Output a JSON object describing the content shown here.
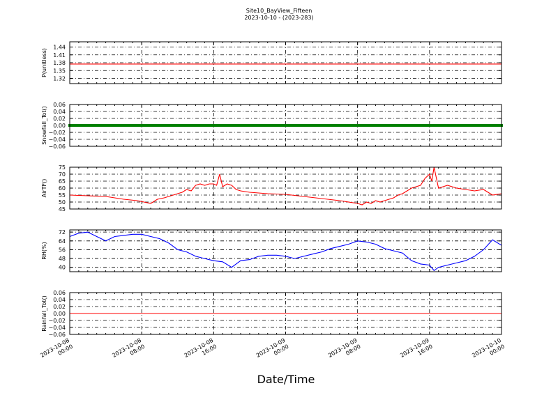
{
  "figure": {
    "title_line1": "Site10_BayView_Fifteen",
    "title_line2": "2023-10-10 - (2023-283)",
    "xlabel": "Date/Time"
  },
  "x_axis": {
    "start": "2023-10-08 00:00",
    "end": "2023-10-10 00:00",
    "tick_labels": [
      [
        "2023-10-08",
        "00:00"
      ],
      [
        "2023-10-08",
        "08:00"
      ],
      [
        "2023-10-08",
        "16:00"
      ],
      [
        "2023-10-09",
        "00:00"
      ],
      [
        "2023-10-09",
        "08:00"
      ],
      [
        "2023-10-09",
        "16:00"
      ],
      [
        "2023-10-10",
        "00:00"
      ]
    ]
  },
  "chart_data": [
    {
      "type": "line",
      "ylabel": "P(unitless)",
      "ylim": [
        1.3,
        1.46
      ],
      "yticks": [
        "1.32",
        "1.35",
        "1.38",
        "1.41",
        "1.44"
      ],
      "grid": true,
      "color": "#ff0000",
      "series": [
        {
          "x": [
            "2023-10-08 00:00",
            "2023-10-10 00:00"
          ],
          "y": [
            1.375,
            1.375
          ]
        }
      ]
    },
    {
      "type": "line",
      "ylabel": "Snowfall_Tot()",
      "ylim": [
        -0.06,
        0.06
      ],
      "yticks": [
        "0.06",
        "0.04",
        "0.02",
        "0.00",
        "−0.02",
        "−0.04",
        "−0.06"
      ],
      "grid": true,
      "color": "#008000",
      "markers": true,
      "series": [
        {
          "x": [
            "2023-10-08 00:00",
            "2023-10-10 00:00"
          ],
          "y": [
            0,
            0
          ]
        }
      ]
    },
    {
      "type": "line",
      "ylabel": "AirTF()",
      "ylim": [
        45,
        75
      ],
      "yticks": [
        "75",
        "70",
        "65",
        "60",
        "55",
        "50",
        "45"
      ],
      "grid": true,
      "color": "#ff0000",
      "series": [
        {
          "x": [
            "2023-10-08 00:00",
            "2023-10-08 02:00",
            "2023-10-08 04:00",
            "2023-10-08 06:00",
            "2023-10-08 07:30",
            "2023-10-08 08:15",
            "2023-10-08 09:00",
            "2023-10-08 09:45",
            "2023-10-08 10:30",
            "2023-10-08 11:30",
            "2023-10-08 12:30",
            "2023-10-08 13:00",
            "2023-10-08 13:30",
            "2023-10-08 14:00",
            "2023-10-08 14:30",
            "2023-10-08 15:00",
            "2023-10-08 15:30",
            "2023-10-08 16:00",
            "2023-10-08 16:20",
            "2023-10-08 16:40",
            "2023-10-08 17:00",
            "2023-10-08 17:30",
            "2023-10-08 18:00",
            "2023-10-08 18:30",
            "2023-10-08 19:00",
            "2023-10-08 20:00",
            "2023-10-08 22:00",
            "2023-10-09 00:00",
            "2023-10-09 02:00",
            "2023-10-09 04:00",
            "2023-10-09 06:00",
            "2023-10-09 08:00",
            "2023-10-09 08:30",
            "2023-10-09 09:00",
            "2023-10-09 09:30",
            "2023-10-09 10:00",
            "2023-10-09 10:30",
            "2023-10-09 11:00",
            "2023-10-09 11:30",
            "2023-10-09 12:00",
            "2023-10-09 12:30",
            "2023-10-09 13:00",
            "2023-10-09 13:30",
            "2023-10-09 14:00",
            "2023-10-09 14:30",
            "2023-10-09 15:00",
            "2023-10-09 15:30",
            "2023-10-09 16:00",
            "2023-10-09 16:15",
            "2023-10-09 16:30",
            "2023-10-09 17:00",
            "2023-10-09 17:30",
            "2023-10-09 18:00",
            "2023-10-09 19:00",
            "2023-10-09 20:00",
            "2023-10-09 21:00",
            "2023-10-09 22:00",
            "2023-10-09 23:00",
            "2023-10-10 00:00"
          ],
          "y": [
            55,
            54.5,
            54,
            52,
            51,
            50,
            49,
            52,
            53,
            55,
            57,
            59,
            58,
            62,
            63,
            62,
            63,
            63,
            62,
            70,
            61,
            63,
            62,
            59,
            58,
            57,
            56,
            55.5,
            54,
            52.5,
            51,
            49,
            48,
            50,
            49,
            51,
            50,
            51,
            52,
            53,
            55,
            56,
            58,
            60,
            61,
            62,
            67,
            70,
            65,
            75,
            60,
            61,
            62,
            60,
            59,
            58,
            59,
            55,
            56
          ]
        }
      ]
    },
    {
      "type": "line",
      "ylabel": "RH(%)",
      "ylim": [
        36,
        74
      ],
      "yticks": [
        "72",
        "64",
        "56",
        "48",
        "40"
      ],
      "grid": true,
      "color": "#0000ff",
      "series": [
        {
          "x": [
            "2023-10-08 00:00",
            "2023-10-08 01:00",
            "2023-10-08 02:00",
            "2023-10-08 03:00",
            "2023-10-08 04:00",
            "2023-10-08 05:00",
            "2023-10-08 06:00",
            "2023-10-08 07:00",
            "2023-10-08 08:00",
            "2023-10-08 09:00",
            "2023-10-08 10:00",
            "2023-10-08 11:00",
            "2023-10-08 12:00",
            "2023-10-08 13:00",
            "2023-10-08 14:00",
            "2023-10-08 15:00",
            "2023-10-08 16:00",
            "2023-10-08 17:00",
            "2023-10-08 18:00",
            "2023-10-08 19:00",
            "2023-10-08 20:00",
            "2023-10-08 21:00",
            "2023-10-08 22:00",
            "2023-10-08 23:00",
            "2023-10-09 00:00",
            "2023-10-09 01:00",
            "2023-10-09 02:00",
            "2023-10-09 03:00",
            "2023-10-09 04:00",
            "2023-10-09 05:00",
            "2023-10-09 06:00",
            "2023-10-09 07:00",
            "2023-10-09 08:00",
            "2023-10-09 09:00",
            "2023-10-09 10:00",
            "2023-10-09 11:00",
            "2023-10-09 12:00",
            "2023-10-09 13:00",
            "2023-10-09 14:00",
            "2023-10-09 15:00",
            "2023-10-09 16:00",
            "2023-10-09 16:30",
            "2023-10-09 17:00",
            "2023-10-09 18:00",
            "2023-10-09 19:00",
            "2023-10-09 20:00",
            "2023-10-09 21:00",
            "2023-10-09 22:00",
            "2023-10-09 23:00",
            "2023-10-10 00:00"
          ],
          "y": [
            68,
            71,
            72,
            68,
            64,
            68,
            69,
            70,
            70,
            68,
            66,
            62,
            56,
            54,
            50,
            48,
            46,
            45,
            40,
            46,
            47,
            50,
            51,
            51,
            50,
            48,
            50,
            52,
            54,
            57,
            59,
            61,
            64,
            63,
            61,
            57,
            55,
            53,
            46,
            43,
            42,
            37,
            40,
            42,
            44,
            46,
            50,
            56,
            65,
            60
          ]
        }
      ]
    },
    {
      "type": "line",
      "ylabel": "Rainfall_Tot()",
      "ylim": [
        -0.06,
        0.06
      ],
      "yticks": [
        "0.06",
        "0.04",
        "0.02",
        "0.00",
        "−0.02",
        "−0.04",
        "−0.06"
      ],
      "grid": true,
      "color": "#ff0000",
      "series": [
        {
          "x": [
            "2023-10-08 00:00",
            "2023-10-10 00:00"
          ],
          "y": [
            0,
            0
          ]
        }
      ]
    }
  ]
}
